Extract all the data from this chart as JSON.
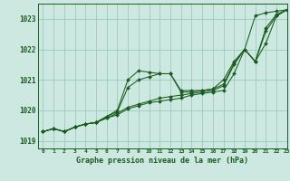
{
  "title": "Graphe pression niveau de la mer (hPa)",
  "background_color": "#cce8e0",
  "plot_bg_color": "#cce8e0",
  "grid_color": "#99ccbb",
  "line_color": "#1a5c20",
  "marker_color": "#1a5c20",
  "xlim": [
    -0.5,
    23
  ],
  "ylim": [
    1018.75,
    1023.5
  ],
  "yticks": [
    1019,
    1020,
    1021,
    1022,
    1023
  ],
  "xticks": [
    0,
    1,
    2,
    3,
    4,
    5,
    6,
    7,
    8,
    9,
    10,
    11,
    12,
    13,
    14,
    15,
    16,
    17,
    18,
    19,
    20,
    21,
    22,
    23
  ],
  "series": [
    [
      1019.3,
      1019.4,
      1019.3,
      1019.45,
      1019.55,
      1019.6,
      1019.75,
      1019.85,
      1020.05,
      1020.15,
      1020.25,
      1020.3,
      1020.35,
      1020.4,
      1020.5,
      1020.55,
      1020.6,
      1020.65,
      1021.2,
      1022.0,
      1023.1,
      1023.2,
      1023.25,
      1023.3
    ],
    [
      1019.3,
      1019.4,
      1019.3,
      1019.45,
      1019.55,
      1019.6,
      1019.75,
      1019.9,
      1020.1,
      1020.2,
      1020.3,
      1020.4,
      1020.45,
      1020.5,
      1020.55,
      1020.6,
      1020.65,
      1020.8,
      1021.5,
      1022.0,
      1021.6,
      1022.7,
      1023.15,
      1023.3
    ],
    [
      1019.3,
      1019.4,
      1019.3,
      1019.45,
      1019.55,
      1019.6,
      1019.8,
      1019.95,
      1020.75,
      1021.0,
      1021.1,
      1021.2,
      1021.2,
      1020.6,
      1020.6,
      1020.65,
      1020.7,
      1020.85,
      1021.55,
      1022.0,
      1021.6,
      1022.2,
      1023.1,
      1023.3
    ],
    [
      1019.3,
      1019.4,
      1019.3,
      1019.45,
      1019.55,
      1019.6,
      1019.8,
      1020.0,
      1021.0,
      1021.3,
      1021.25,
      1021.2,
      1021.2,
      1020.65,
      1020.65,
      1020.65,
      1020.7,
      1021.0,
      1021.6,
      1022.0,
      1021.6,
      1022.6,
      1023.1,
      1023.3
    ]
  ]
}
